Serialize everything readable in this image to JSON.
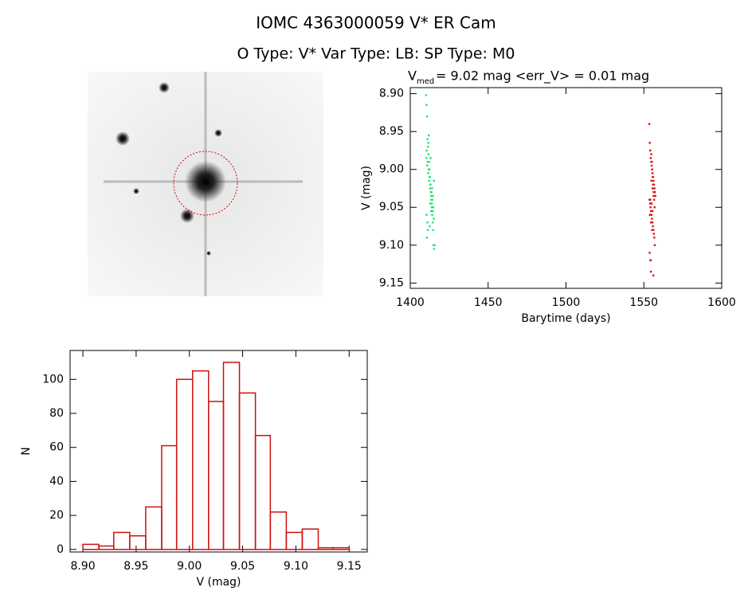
{
  "title": "IOMC 4363000059   V* ER Cam",
  "subtitle": "O Type: V*  Var Type: LB:  SP Type: M0",
  "chart_data": [
    {
      "type": "scatter",
      "title_prefix": "V",
      "title_subscript": "med",
      "title": "= 9.02 mag <err_V> = 0.01 mag",
      "xlabel": "Barytime (days)",
      "ylabel": "V (mag)",
      "xlim": [
        1400,
        1600
      ],
      "xticks": [
        1400,
        1450,
        1500,
        1550,
        1600
      ],
      "ylim": [
        8.892,
        9.157
      ],
      "y_inverted": true,
      "yticks": [
        {
          "value": 8.9,
          "label": "8.90"
        },
        8.95,
        {
          "value": 9.0,
          "label": "9.00"
        },
        9.05,
        {
          "value": 9.1,
          "label": "9.10"
        },
        9.15
      ],
      "series": [
        {
          "color": "#22e27a",
          "x": [
            1410.2,
            1410.5,
            1410.8,
            1411.1,
            1411.4,
            1411.7,
            1412.0,
            1412.3,
            1412.6,
            1412.9,
            1413.2,
            1413.5,
            1413.8,
            1414.1,
            1414.4,
            1414.7,
            1415.0,
            1415.3,
            1410.3,
            1410.9,
            1411.5,
            1412.1,
            1412.7,
            1413.3,
            1413.9,
            1414.5,
            1415.1,
            1410.6,
            1411.2,
            1411.8,
            1412.4,
            1413.0,
            1413.6,
            1414.2,
            1414.8,
            1410.4,
            1411.0,
            1411.6,
            1412.2,
            1412.8,
            1413.4,
            1414.0,
            1414.6,
            1415.2,
            1410.7,
            1411.3,
            1411.9,
            1412.5,
            1413.1,
            1415.6
          ],
          "values": [
            8.902,
            8.915,
            8.93,
            8.96,
            8.97,
            8.98,
            8.99,
            9.0,
            9.01,
            9.02,
            9.03,
            9.04,
            9.05,
            9.06,
            9.07,
            9.08,
            9.1,
            9.105,
            8.985,
            8.995,
            9.005,
            9.015,
            9.025,
            9.035,
            9.045,
            9.055,
            9.065,
            8.975,
            8.99,
            9.0,
            9.01,
            9.02,
            9.03,
            9.04,
            9.05,
            9.06,
            9.07,
            8.965,
            9.0,
            9.045,
            9.055,
            9.025,
            9.035,
            9.015,
            9.09,
            9.08,
            8.955,
            9.075,
            8.985,
            9.1
          ]
        },
        {
          "color": "#e01010",
          "x": [
            1553.5,
            1553.8,
            1554.1,
            1554.4,
            1554.7,
            1555.0,
            1555.3,
            1555.6,
            1555.9,
            1556.2,
            1556.5,
            1556.8,
            1557.1,
            1557.4,
            1553.6,
            1554.0,
            1554.3,
            1554.6,
            1554.9,
            1555.2,
            1555.5,
            1555.8,
            1556.1,
            1556.4,
            1556.7,
            1557.0,
            1553.7,
            1554.2,
            1554.5,
            1554.8,
            1555.1,
            1555.4,
            1555.7,
            1556.0,
            1556.3,
            1556.6,
            1556.9,
            1553.9,
            1554.6,
            1555.3,
            1556.0,
            1556.7,
            1554.2,
            1554.9,
            1555.6,
            1556.3,
            1555.0,
            1555.5,
            1554.4,
            1556.1
          ],
          "values": [
            8.94,
            8.965,
            8.975,
            8.985,
            8.99,
            8.995,
            9.0,
            9.005,
            9.01,
            9.015,
            9.02,
            9.025,
            9.03,
            9.035,
            9.04,
            9.045,
            9.05,
            9.055,
            9.06,
            9.065,
            9.07,
            9.075,
            9.08,
            9.085,
            9.09,
            9.1,
            9.11,
            9.12,
            9.135,
            8.98,
            8.99,
            9.0,
            9.01,
            9.02,
            9.03,
            9.04,
            9.05,
            9.06,
            9.07,
            9.08,
            9.02,
            9.03,
            9.04,
            9.015,
            9.025,
            9.035,
            9.045,
            9.055,
            9.12,
            9.14
          ]
        }
      ]
    },
    {
      "type": "histogram",
      "xlabel": "V (mag)",
      "ylabel": "N",
      "color": "#cc1111",
      "bins": [
        8.9,
        8.915,
        8.929,
        8.944,
        8.959,
        8.974,
        8.988,
        9.003,
        9.018,
        9.032,
        9.047,
        9.062,
        9.076,
        9.091,
        9.106,
        9.121,
        9.135,
        9.15
      ],
      "values": [
        3,
        2,
        10,
        8,
        25,
        61,
        100,
        105,
        87,
        110,
        92,
        67,
        22,
        10,
        12,
        1,
        1
      ],
      "xlim": [
        8.888,
        9.167
      ],
      "xticks": [
        {
          "value": 8.9,
          "label": "8.90"
        },
        8.95,
        {
          "value": 9.0,
          "label": "9.00"
        },
        9.05,
        {
          "value": 9.1,
          "label": "9.10"
        },
        9.15
      ],
      "ylim": [
        -1.5,
        117
      ],
      "yticks": [
        0,
        20,
        40,
        60,
        80,
        100
      ]
    }
  ]
}
